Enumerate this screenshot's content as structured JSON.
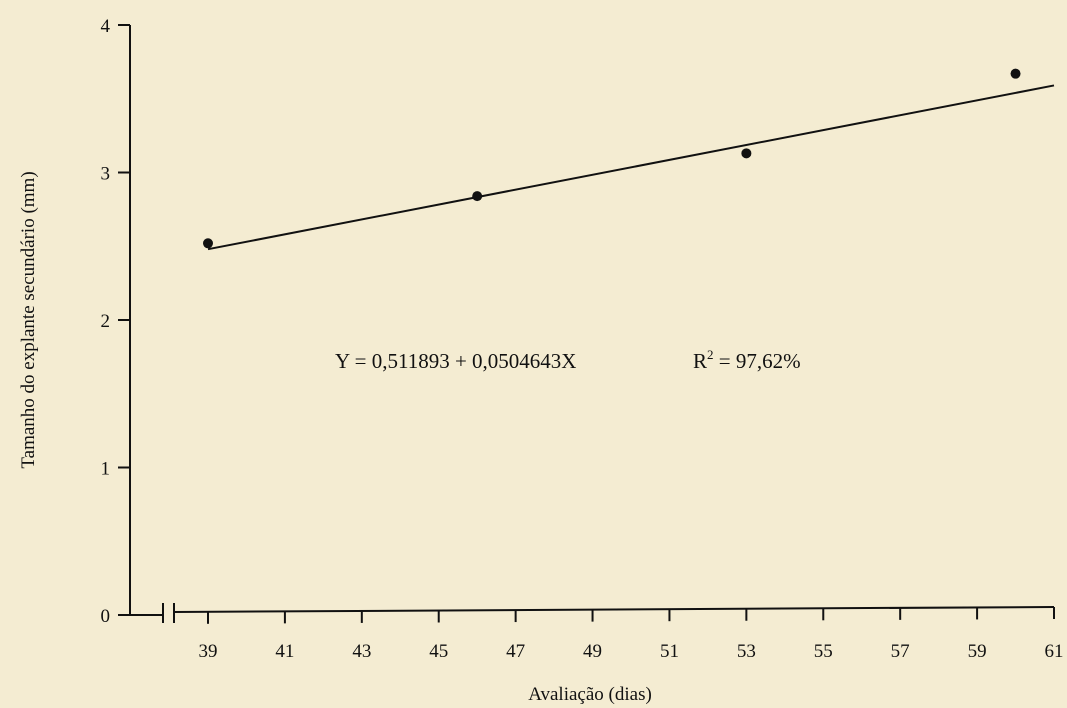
{
  "chart_data": {
    "type": "scatter",
    "xlabel": "Avaliação (dias)",
    "ylabel": "Tamanho do explante secundário (mm)",
    "x_ticks": [
      39,
      41,
      43,
      45,
      47,
      49,
      51,
      53,
      55,
      57,
      59,
      61
    ],
    "y_ticks": [
      0,
      1,
      2,
      3,
      4
    ],
    "xlim": [
      39,
      61
    ],
    "ylim": [
      0,
      4
    ],
    "x_axis_break": true,
    "points": [
      {
        "x": 39,
        "y": 2.52
      },
      {
        "x": 46,
        "y": 2.84
      },
      {
        "x": 53,
        "y": 3.13
      },
      {
        "x": 60,
        "y": 3.67
      }
    ],
    "fit": {
      "intercept": 0.511893,
      "slope": 0.0504643,
      "x_range": [
        39,
        61
      ]
    },
    "equation": {
      "text": "Y = 0,511893 + 0,0504643X",
      "r2_prefix": "R",
      "r2_exp": "2",
      "r2_value": " = 97,62%"
    },
    "grid": false,
    "colors": {
      "background": "#f4ecd2",
      "ink": "#111111"
    }
  }
}
